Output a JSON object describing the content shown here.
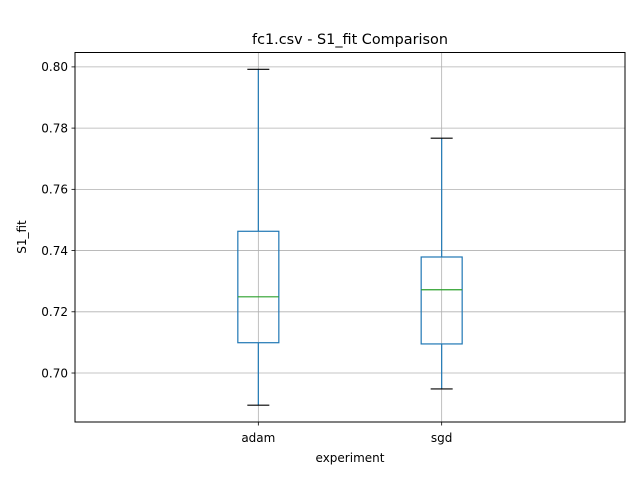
{
  "chart_data": {
    "type": "box",
    "title": "fc1.csv - S1_fit Comparison",
    "xlabel": "experiment",
    "ylabel": "S1_fit",
    "categories": [
      "adam",
      "sgd"
    ],
    "ylim": [
      0.684,
      0.8047
    ],
    "yticks": [
      0.7,
      0.72,
      0.74,
      0.76,
      0.78,
      0.8
    ],
    "ytick_labels": [
      "0.70",
      "0.72",
      "0.74",
      "0.76",
      "0.78",
      "0.80"
    ],
    "grid": true,
    "boxes": [
      {
        "name": "adam",
        "whisker_low": 0.6895,
        "q1": 0.7099,
        "median": 0.7249,
        "q3": 0.7463,
        "whisker_high": 0.7992
      },
      {
        "name": "sgd",
        "whisker_low": 0.6948,
        "q1": 0.7095,
        "median": 0.7272,
        "q3": 0.7379,
        "whisker_high": 0.7767
      }
    ],
    "colors": {
      "box": "#1f77b4",
      "median": "#2ca02c",
      "grid": "#b0b0b0",
      "cap": "#000000"
    }
  }
}
